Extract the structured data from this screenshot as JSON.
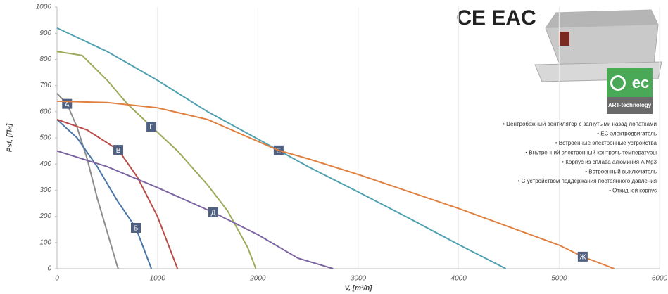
{
  "chart_data": {
    "type": "line",
    "x_label": "V, [m³/h]",
    "y_label": "Pst, [Па]",
    "xlim": [
      0,
      6000
    ],
    "xticks": [
      0,
      1000,
      2000,
      3000,
      4000,
      5000,
      6000
    ],
    "ylim": [
      0,
      1000
    ],
    "yticks": [
      0,
      100,
      200,
      300,
      400,
      500,
      600,
      700,
      800,
      900,
      1000
    ],
    "grid": true,
    "series": [
      {
        "name": "А",
        "color": "#8c8c8c",
        "x": [
          0,
          100,
          200,
          300,
          400,
          500,
          600,
          610
        ],
        "values": [
          670,
          630,
          540,
          420,
          270,
          140,
          10,
          0
        ]
      },
      {
        "name": "Б",
        "color": "#4a77a8",
        "x": [
          0,
          200,
          400,
          600,
          785,
          940
        ],
        "values": [
          570,
          500,
          390,
          260,
          156,
          0
        ]
      },
      {
        "name": "В",
        "color": "#b94a48",
        "x": [
          0,
          300,
          610,
          800,
          1000,
          1100,
          1200
        ],
        "values": [
          570,
          530,
          454,
          350,
          200,
          100,
          0
        ]
      },
      {
        "name": "Г",
        "color": "#9bab5a",
        "x": [
          0,
          250,
          500,
          700,
          940,
          1200,
          1500,
          1700,
          1900,
          1980
        ],
        "values": [
          830,
          815,
          720,
          630,
          543,
          450,
          320,
          220,
          80,
          0
        ]
      },
      {
        "name": "Д",
        "color": "#7b64a0",
        "x": [
          0,
          500,
          1000,
          1556,
          2000,
          2400,
          2750
        ],
        "values": [
          450,
          390,
          310,
          215,
          130,
          40,
          0
        ]
      },
      {
        "name": "Е",
        "color": "#4fa0b0",
        "x": [
          0,
          500,
          1000,
          1500,
          2207,
          2500,
          3000,
          3500,
          4000,
          4470
        ],
        "values": [
          920,
          830,
          720,
          600,
          452,
          390,
          293,
          194,
          92,
          0
        ]
      },
      {
        "name": "Ж",
        "color": "#e08040",
        "x": [
          0,
          500,
          1000,
          1500,
          2207,
          2500,
          3000,
          4000,
          5000,
          5235,
          5550
        ],
        "values": [
          640,
          635,
          615,
          570,
          452,
          420,
          360,
          230,
          90,
          46,
          0
        ]
      }
    ]
  },
  "certifications": "CE EAC",
  "badge": {
    "logo": "ec",
    "caption": "ART-technology"
  },
  "features": [
    "• Центробежный вентилятор с загнутыми назад лопатками",
    "• EC-электродвигатель",
    "• Встроенные электронные устройства",
    "• Внутренний электронный контроль температуры",
    "• Корпус из сплава алюминия AlMg3",
    "• Встроенный выключатель",
    "• С устройством поддержания постоянного давления",
    "• Откидной корпус"
  ]
}
